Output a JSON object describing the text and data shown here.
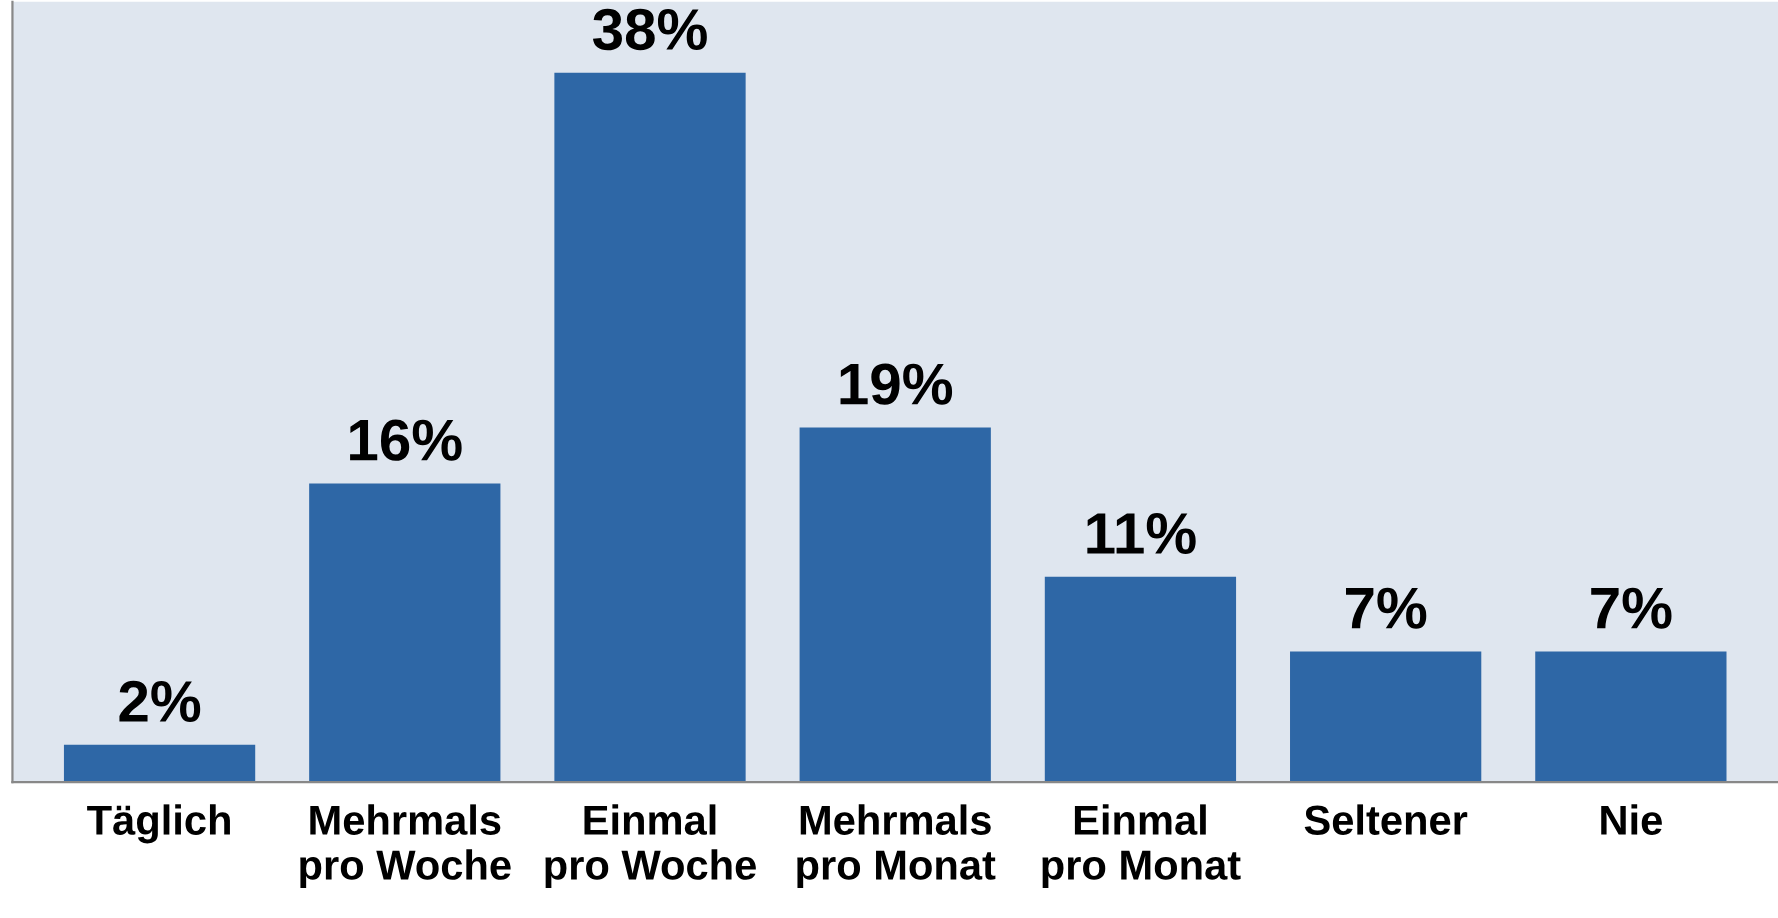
{
  "chart_data": {
    "type": "bar",
    "categories": [
      "Täglich",
      "Mehrmals\npro Woche",
      "Einmal\npro Woche",
      "Mehrmals\npro Monat",
      "Einmal\npro Monat",
      "Seltener",
      "Nie"
    ],
    "values": [
      2,
      16,
      38,
      19,
      11,
      7,
      7
    ],
    "value_labels": [
      "2%",
      "16%",
      "38%",
      "19%",
      "11%",
      "7%",
      "7%"
    ],
    "color": "#2e67a6"
  }
}
